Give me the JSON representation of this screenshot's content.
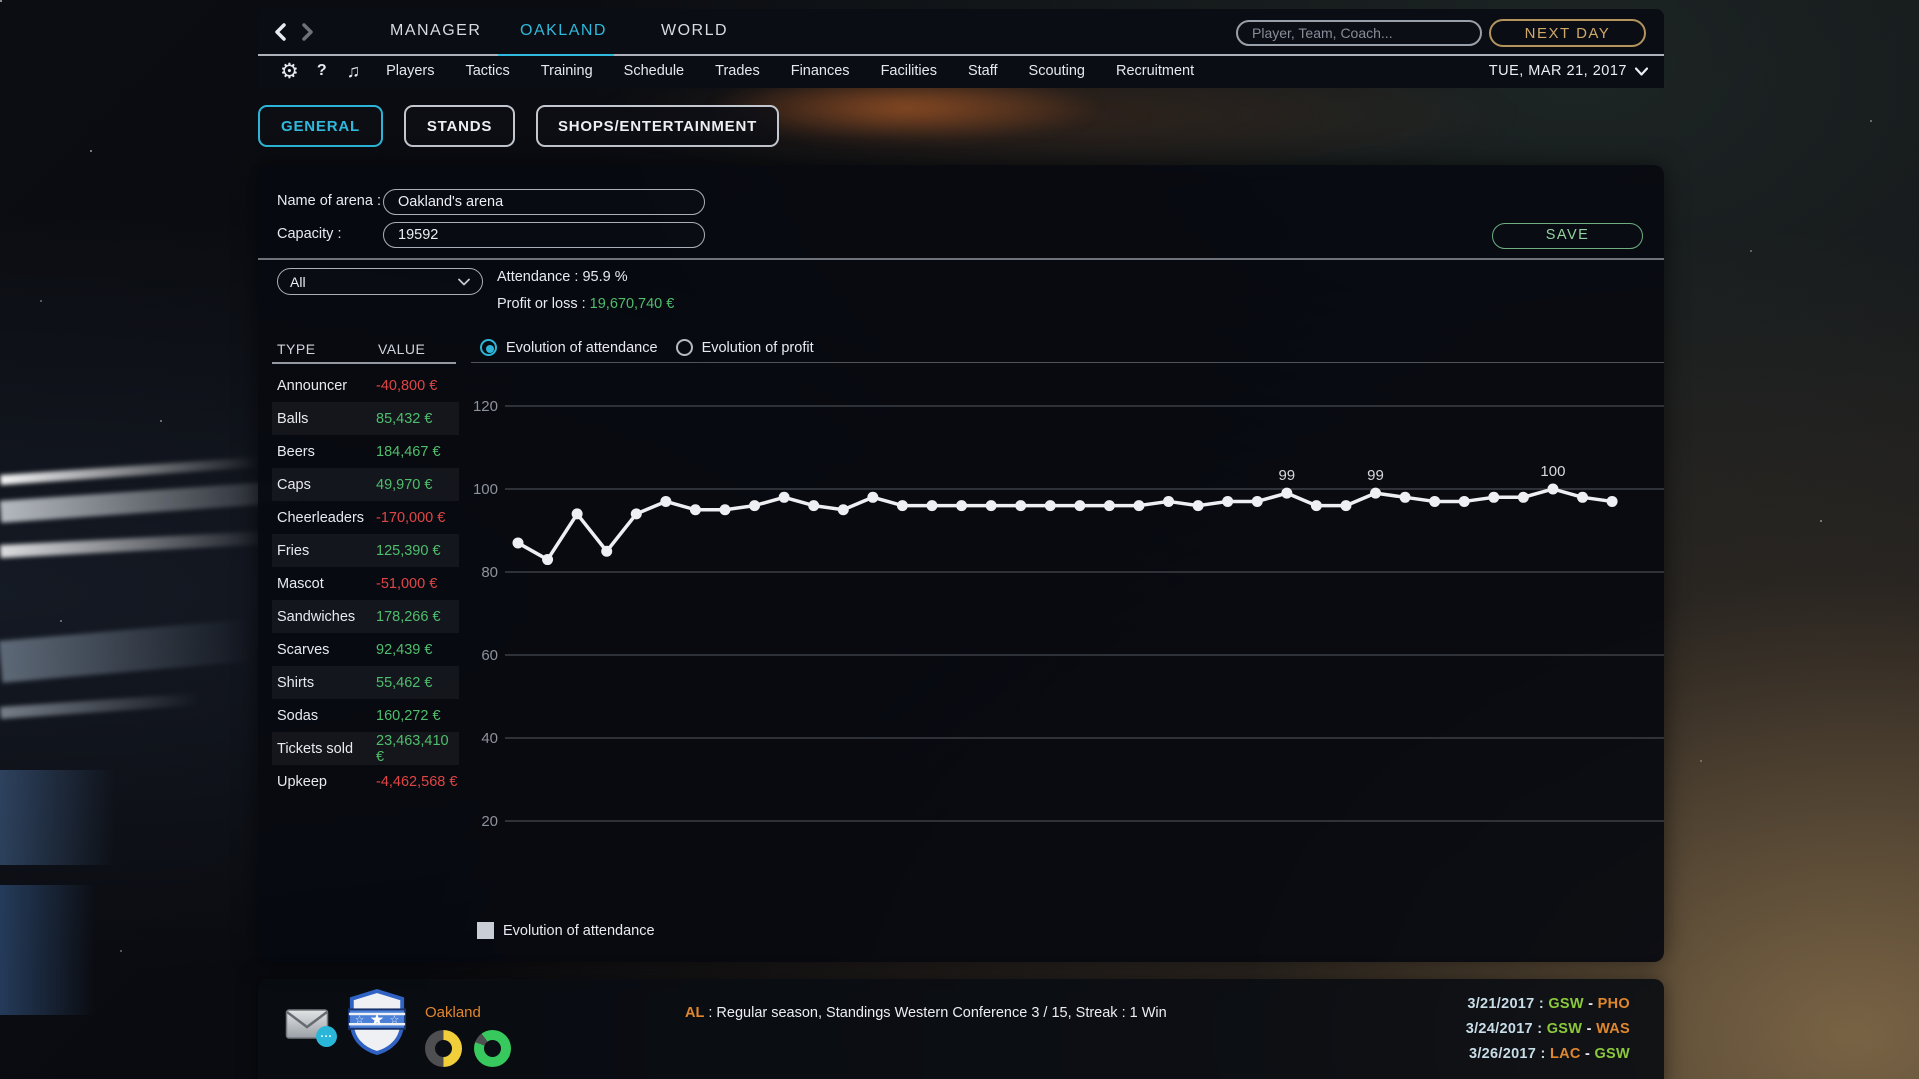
{
  "top_nav": {
    "tabs": [
      {
        "label": "MANAGER",
        "active": false
      },
      {
        "label": "OAKLAND",
        "active": true
      },
      {
        "label": "WORLD",
        "active": false
      }
    ],
    "search_placeholder": "Player, Team, Coach...",
    "next_day_label": "NEXT DAY"
  },
  "menu_bar": {
    "items": [
      "Players",
      "Tactics",
      "Training",
      "Schedule",
      "Trades",
      "Finances",
      "Facilities",
      "Staff",
      "Scouting",
      "Recruitment"
    ],
    "date_label": "TUE, MAR 21, 2017"
  },
  "view_tabs": [
    {
      "label": "GENERAL",
      "active": true
    },
    {
      "label": "STANDS",
      "active": false
    },
    {
      "label": "SHOPS/ENTERTAINMENT",
      "active": false
    }
  ],
  "arena_form": {
    "name_label": "Name of arena :",
    "name_value": "Oakland's arena",
    "capacity_label": "Capacity :",
    "capacity_value": "19592",
    "save_label": "SAVE"
  },
  "filter_dropdown": {
    "value": "All"
  },
  "stats": {
    "attendance_label": "Attendance :",
    "attendance_value": "95.9 %",
    "profit_label": "Profit or loss :",
    "profit_value": "19,670,740 €"
  },
  "chart_controls": [
    {
      "label": "Evolution of attendance",
      "selected": true
    },
    {
      "label": "Evolution of profit",
      "selected": false
    }
  ],
  "finance_table": {
    "headers": [
      "TYPE",
      "VALUE"
    ],
    "rows": [
      {
        "type": "Announcer",
        "value": "-40,800 €",
        "negative": true
      },
      {
        "type": "Balls",
        "value": "85,432 €",
        "negative": false
      },
      {
        "type": "Beers",
        "value": "184,467 €",
        "negative": false
      },
      {
        "type": "Caps",
        "value": "49,970 €",
        "negative": false
      },
      {
        "type": "Cheerleaders",
        "value": "-170,000 €",
        "negative": true
      },
      {
        "type": "Fries",
        "value": "125,390 €",
        "negative": false
      },
      {
        "type": "Mascot",
        "value": "-51,000 €",
        "negative": true
      },
      {
        "type": "Sandwiches",
        "value": "178,266 €",
        "negative": false
      },
      {
        "type": "Scarves",
        "value": "92,439 €",
        "negative": false
      },
      {
        "type": "Shirts",
        "value": "55,462 €",
        "negative": false
      },
      {
        "type": "Sodas",
        "value": "160,272 €",
        "negative": false
      },
      {
        "type": "Tickets sold",
        "value": "23,463,410 €",
        "negative": false
      },
      {
        "type": "Upkeep",
        "value": "-4,462,568 €",
        "negative": true
      }
    ]
  },
  "chart_data": {
    "type": "line",
    "series_name": "Evolution of attendance",
    "values": [
      87,
      83,
      94,
      85,
      94,
      97,
      95,
      95,
      96,
      98,
      96,
      95,
      98,
      96,
      96,
      96,
      96,
      96,
      96,
      96,
      96,
      96,
      97,
      96,
      97,
      97,
      99,
      96,
      96,
      99,
      98,
      97,
      97,
      98,
      98,
      100,
      98,
      97
    ],
    "point_labels": {
      "26": "99",
      "29": "99",
      "35": "100"
    },
    "yticks": [
      120,
      100,
      80,
      60,
      40,
      20
    ],
    "ylim": [
      20,
      120
    ],
    "grid": true,
    "line_color": "#edeff3",
    "grid_color": "#55585f",
    "tick_color": "#8e929b"
  },
  "chart_legend": {
    "label": "Evolution of attendance",
    "swatch_color": "#c9cdd5"
  },
  "bottom_bar": {
    "team_name": "Oakland",
    "league_label": "AL",
    "status_text": " : Regular season, Standings Western Conference 3 / 15, Streak : 1 Win",
    "mail_badge": "...",
    "gauges": [
      {
        "name": "capacity-gauge",
        "segments": [
          {
            "color": "#f0cf3a",
            "from": 0,
            "to": 180
          },
          {
            "color": "#4f4f52",
            "from": 180,
            "to": 360
          }
        ]
      },
      {
        "name": "form-gauge",
        "segments": [
          {
            "color": "#37c95e",
            "from": 0,
            "to": 290
          },
          {
            "color": "#4f4f52",
            "from": 290,
            "to": 324
          },
          {
            "color": "#37c95e",
            "from": 324,
            "to": 360
          }
        ]
      }
    ],
    "schedule": [
      {
        "date": "3/21/2017",
        "team1": "GSW",
        "team1_color": "#8bc83c",
        "team2": "PHO",
        "team2_color": "#e0872e"
      },
      {
        "date": "3/24/2017",
        "team1": "GSW",
        "team1_color": "#8bc83c",
        "team2": "WAS",
        "team2_color": "#e0872e"
      },
      {
        "date": "3/26/2017",
        "team1": "LAC",
        "team1_color": "#e0872e",
        "team2": "GSW",
        "team2_color": "#8bc83c"
      }
    ]
  },
  "accent_colors": {
    "accent_cyan": "#2cb5d8",
    "positive_green": "#4fbe6c",
    "negative_red": "#e04545",
    "gold": "#cfa968",
    "orange": "#e0872e",
    "team_green": "#8bc83c"
  }
}
